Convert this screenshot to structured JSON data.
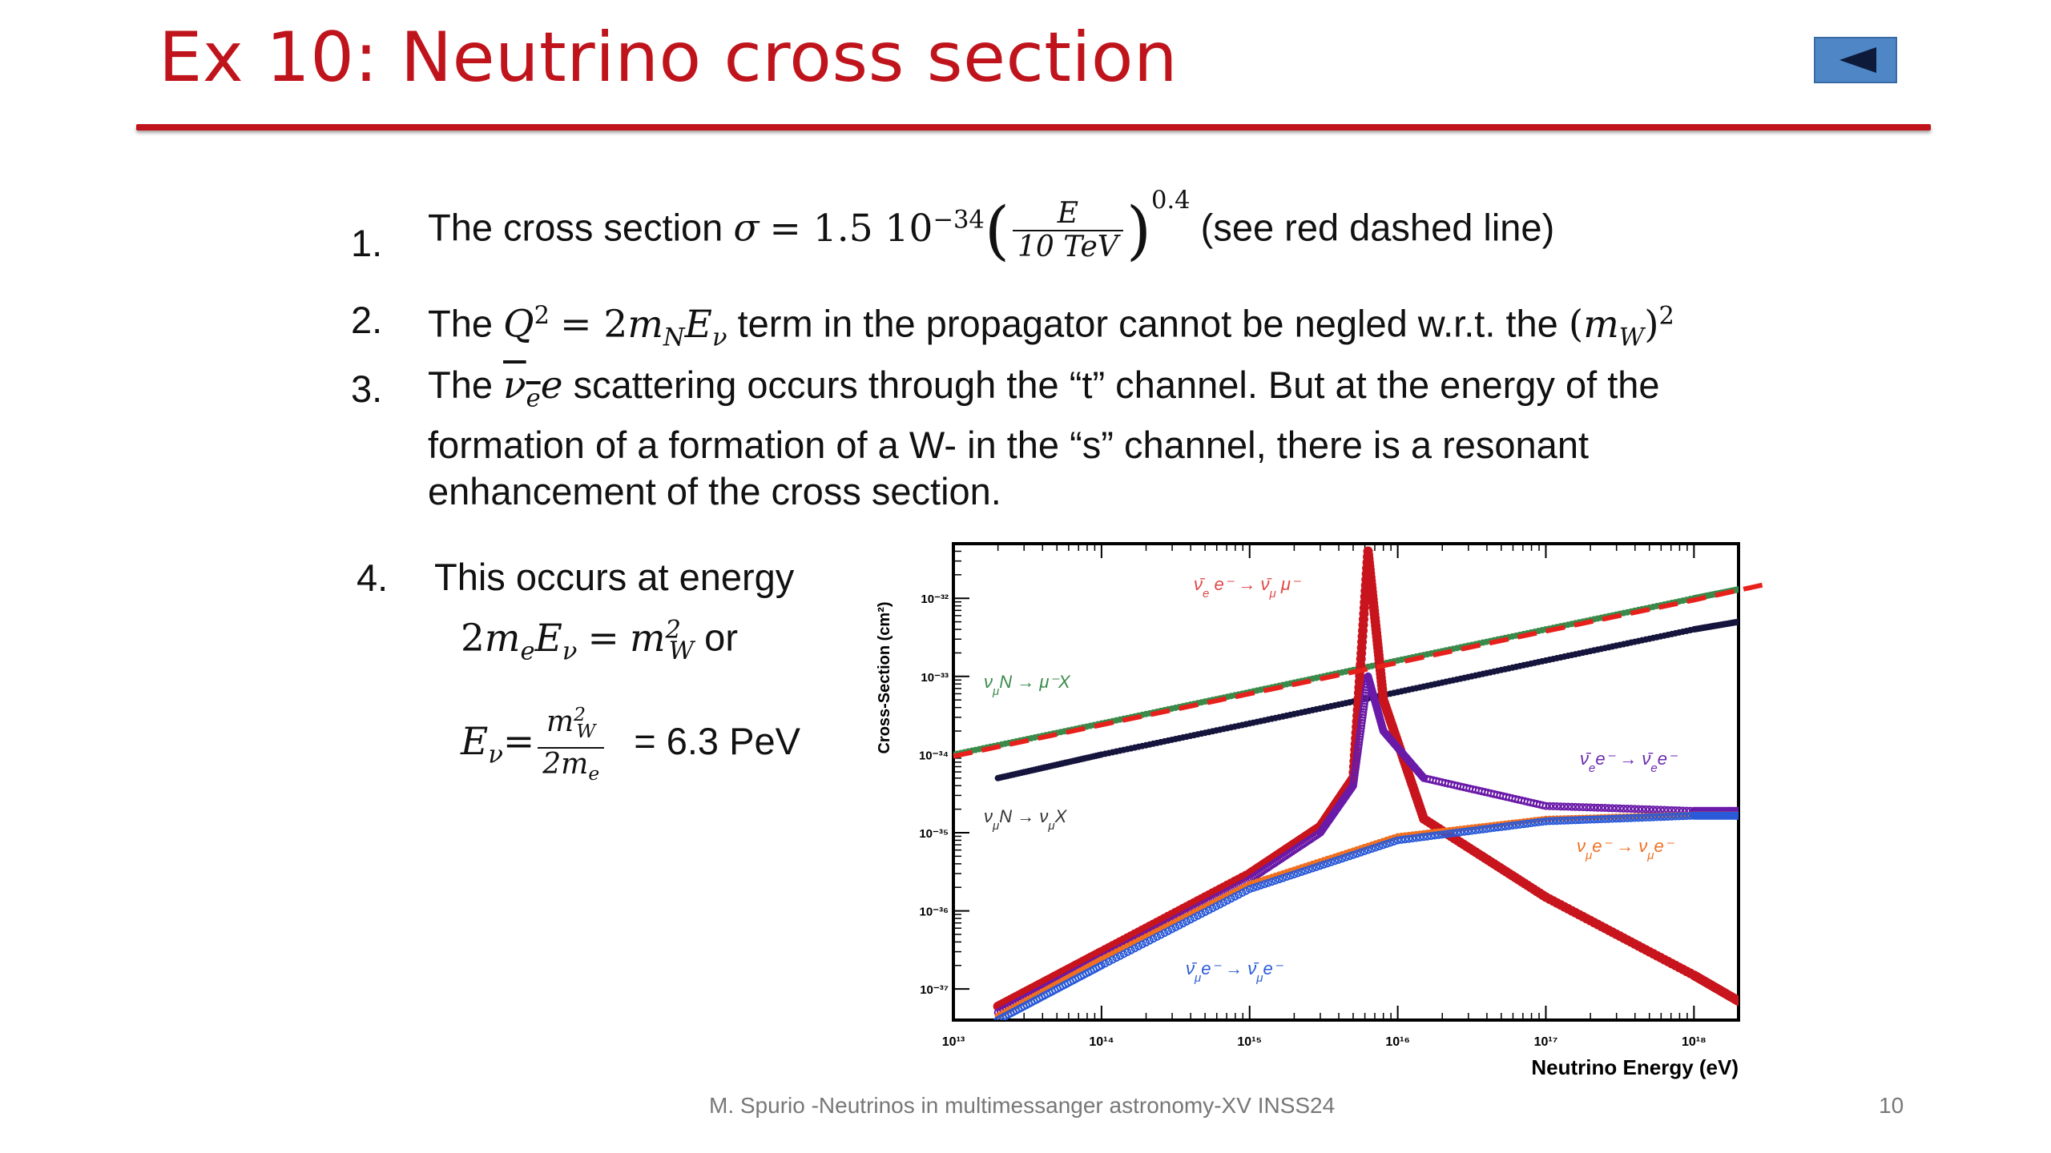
{
  "slide": {
    "title": "Ex 10: Neutrino cross section",
    "footer_text": "M. Spurio -Neutrinos in multimessanger astronomy-XV INSS24",
    "page_number": "10"
  },
  "items": [
    {
      "num": "1.",
      "text_a": "The cross section ",
      "text_b": " (see red dashed line)"
    },
    {
      "num": "2.",
      "text_a": "The ",
      "text_b": " term in the propagator cannot be negled w.r.t. the "
    },
    {
      "num": "3.",
      "text_a": "The ",
      "text_b": " scattering occurs through the “t” channel. But at the energy of the",
      "line2": "formation of a formation of a W- in the “s” channel, there is a resonant",
      "line3": "enhancement of the cross section."
    },
    {
      "num": "4.",
      "text_a": "This occurs at energy",
      "text_or": " or",
      "text_value": "= 6.3 PeV"
    }
  ],
  "chart_data": {
    "type": "scatter",
    "xlabel": "Neutrino Energy (eV)",
    "ylabel": "Cross-Section (cm²)",
    "x_log": true,
    "y_log": true,
    "xlim": [
      10000000000000.0,
      2e+18
    ],
    "ylim": [
      4e-38,
      5e-32
    ],
    "x_tick_labels": [
      "10¹³",
      "10¹⁴",
      "10¹⁵",
      "10¹⁶",
      "10¹⁷",
      "10¹⁸"
    ],
    "y_tick_labels": [
      "10⁻³²",
      "10⁻³³",
      "10⁻³⁴",
      "10⁻³⁵",
      "10⁻³⁶",
      "10⁻³⁷"
    ],
    "series": [
      {
        "name": "νμN → μ⁻X",
        "color": "#3a8a4a",
        "x": [
          10000000000000.0,
          100000000000000.0,
          1000000000000000.0,
          1e+16,
          1e+17,
          1e+18,
          2e+18
        ],
        "y": [
          1e-34,
          2.5e-34,
          6.3e-34,
          1.6e-33,
          4e-33,
          1e-32,
          1.3e-32
        ]
      },
      {
        "name": "νμN → νμX",
        "color": "#14143c",
        "x": [
          20000000000000.0,
          100000000000000.0,
          1000000000000000.0,
          1e+16,
          1e+17,
          1e+18,
          2e+18
        ],
        "y": [
          5e-35,
          1e-34,
          2.5e-34,
          6.3e-34,
          1.6e-33,
          4e-33,
          5e-33
        ]
      },
      {
        "name": "ν̄e e⁻ → ν̄μ μ⁻",
        "color": "#c8141c",
        "x": [
          20000000000000.0,
          100000000000000.0,
          1000000000000000.0,
          3000000000000000.0,
          5000000000000000.0,
          6300000000000000.0,
          8000000000000000.0,
          1.5e+16,
          1e+17,
          1e+18,
          2e+18
        ],
        "y": [
          6e-38,
          3e-37,
          3e-36,
          1.2e-35,
          5e-35,
          4e-32,
          5e-34,
          1.5e-35,
          1.5e-36,
          1.5e-37,
          7e-38
        ]
      },
      {
        "name": "ν̄e e⁻ → ν̄e e⁻",
        "color": "#6a1aa8",
        "x": [
          20000000000000.0,
          100000000000000.0,
          1000000000000000.0,
          3000000000000000.0,
          5000000000000000.0,
          6300000000000000.0,
          8000000000000000.0,
          1.5e+16,
          1e+17,
          1e+18,
          2e+18
        ],
        "y": [
          5e-38,
          2.5e-37,
          2.5e-36,
          1e-35,
          4e-35,
          1e-33,
          2e-34,
          5e-35,
          2.2e-35,
          1.9e-35,
          1.9e-35
        ]
      },
      {
        "name": "νμ e⁻ → νμ e⁻",
        "color": "#f07020",
        "x": [
          20000000000000.0,
          100000000000000.0,
          1000000000000000.0,
          1e+16,
          1e+17,
          1e+18,
          2e+18
        ],
        "y": [
          4.5e-38,
          2.4e-37,
          2.2e-36,
          9e-36,
          1.5e-35,
          1.7e-35,
          1.7e-35
        ]
      },
      {
        "name": "ν̄μ e⁻ → ν̄μ e⁻",
        "color": "#2a5ad8",
        "x": [
          20000000000000.0,
          100000000000000.0,
          1000000000000000.0,
          1e+16,
          1e+17,
          1e+18,
          2e+18
        ],
        "y": [
          4e-38,
          2e-37,
          1.9e-36,
          8e-36,
          1.4e-35,
          1.65e-35,
          1.65e-35
        ]
      },
      {
        "name": "fit",
        "color": "#e8201c",
        "dashed": true,
        "x": [
          10000000000000.0,
          100000000000000.0,
          1000000000000000.0,
          1e+16,
          1e+17,
          1e+18,
          3e+18
        ],
        "y": [
          9.5e-35,
          2.4e-34,
          6e-34,
          1.5e-33,
          3.8e-33,
          9.5e-33,
          1.5e-32
        ]
      }
    ],
    "annotations": [
      {
        "label_parts": [
          "ν̄",
          "e",
          " e⁻ → ",
          "ν̄",
          "μ",
          " μ⁻"
        ],
        "color": "#e04848"
      },
      {
        "label_parts": [
          "ν",
          "μ",
          "N → μ⁻X"
        ],
        "color": "#3a8a4a"
      },
      {
        "label_parts": [
          "ν",
          "μ",
          "N → ν",
          "μ",
          "X"
        ],
        "color": "#333333"
      },
      {
        "label_parts": [
          "ν̄",
          "e",
          "e⁻ → ",
          "ν̄",
          "e",
          "e⁻"
        ],
        "color": "#6a2ab0"
      },
      {
        "label_parts": [
          "ν",
          "μ",
          "e⁻ → ν",
          "μ",
          "e⁻"
        ],
        "color": "#f07020"
      },
      {
        "label_parts": [
          "ν̄",
          "μ",
          "e⁻ → ",
          "ν̄",
          "μ",
          "e⁻"
        ],
        "color": "#2a5ad8"
      }
    ]
  }
}
